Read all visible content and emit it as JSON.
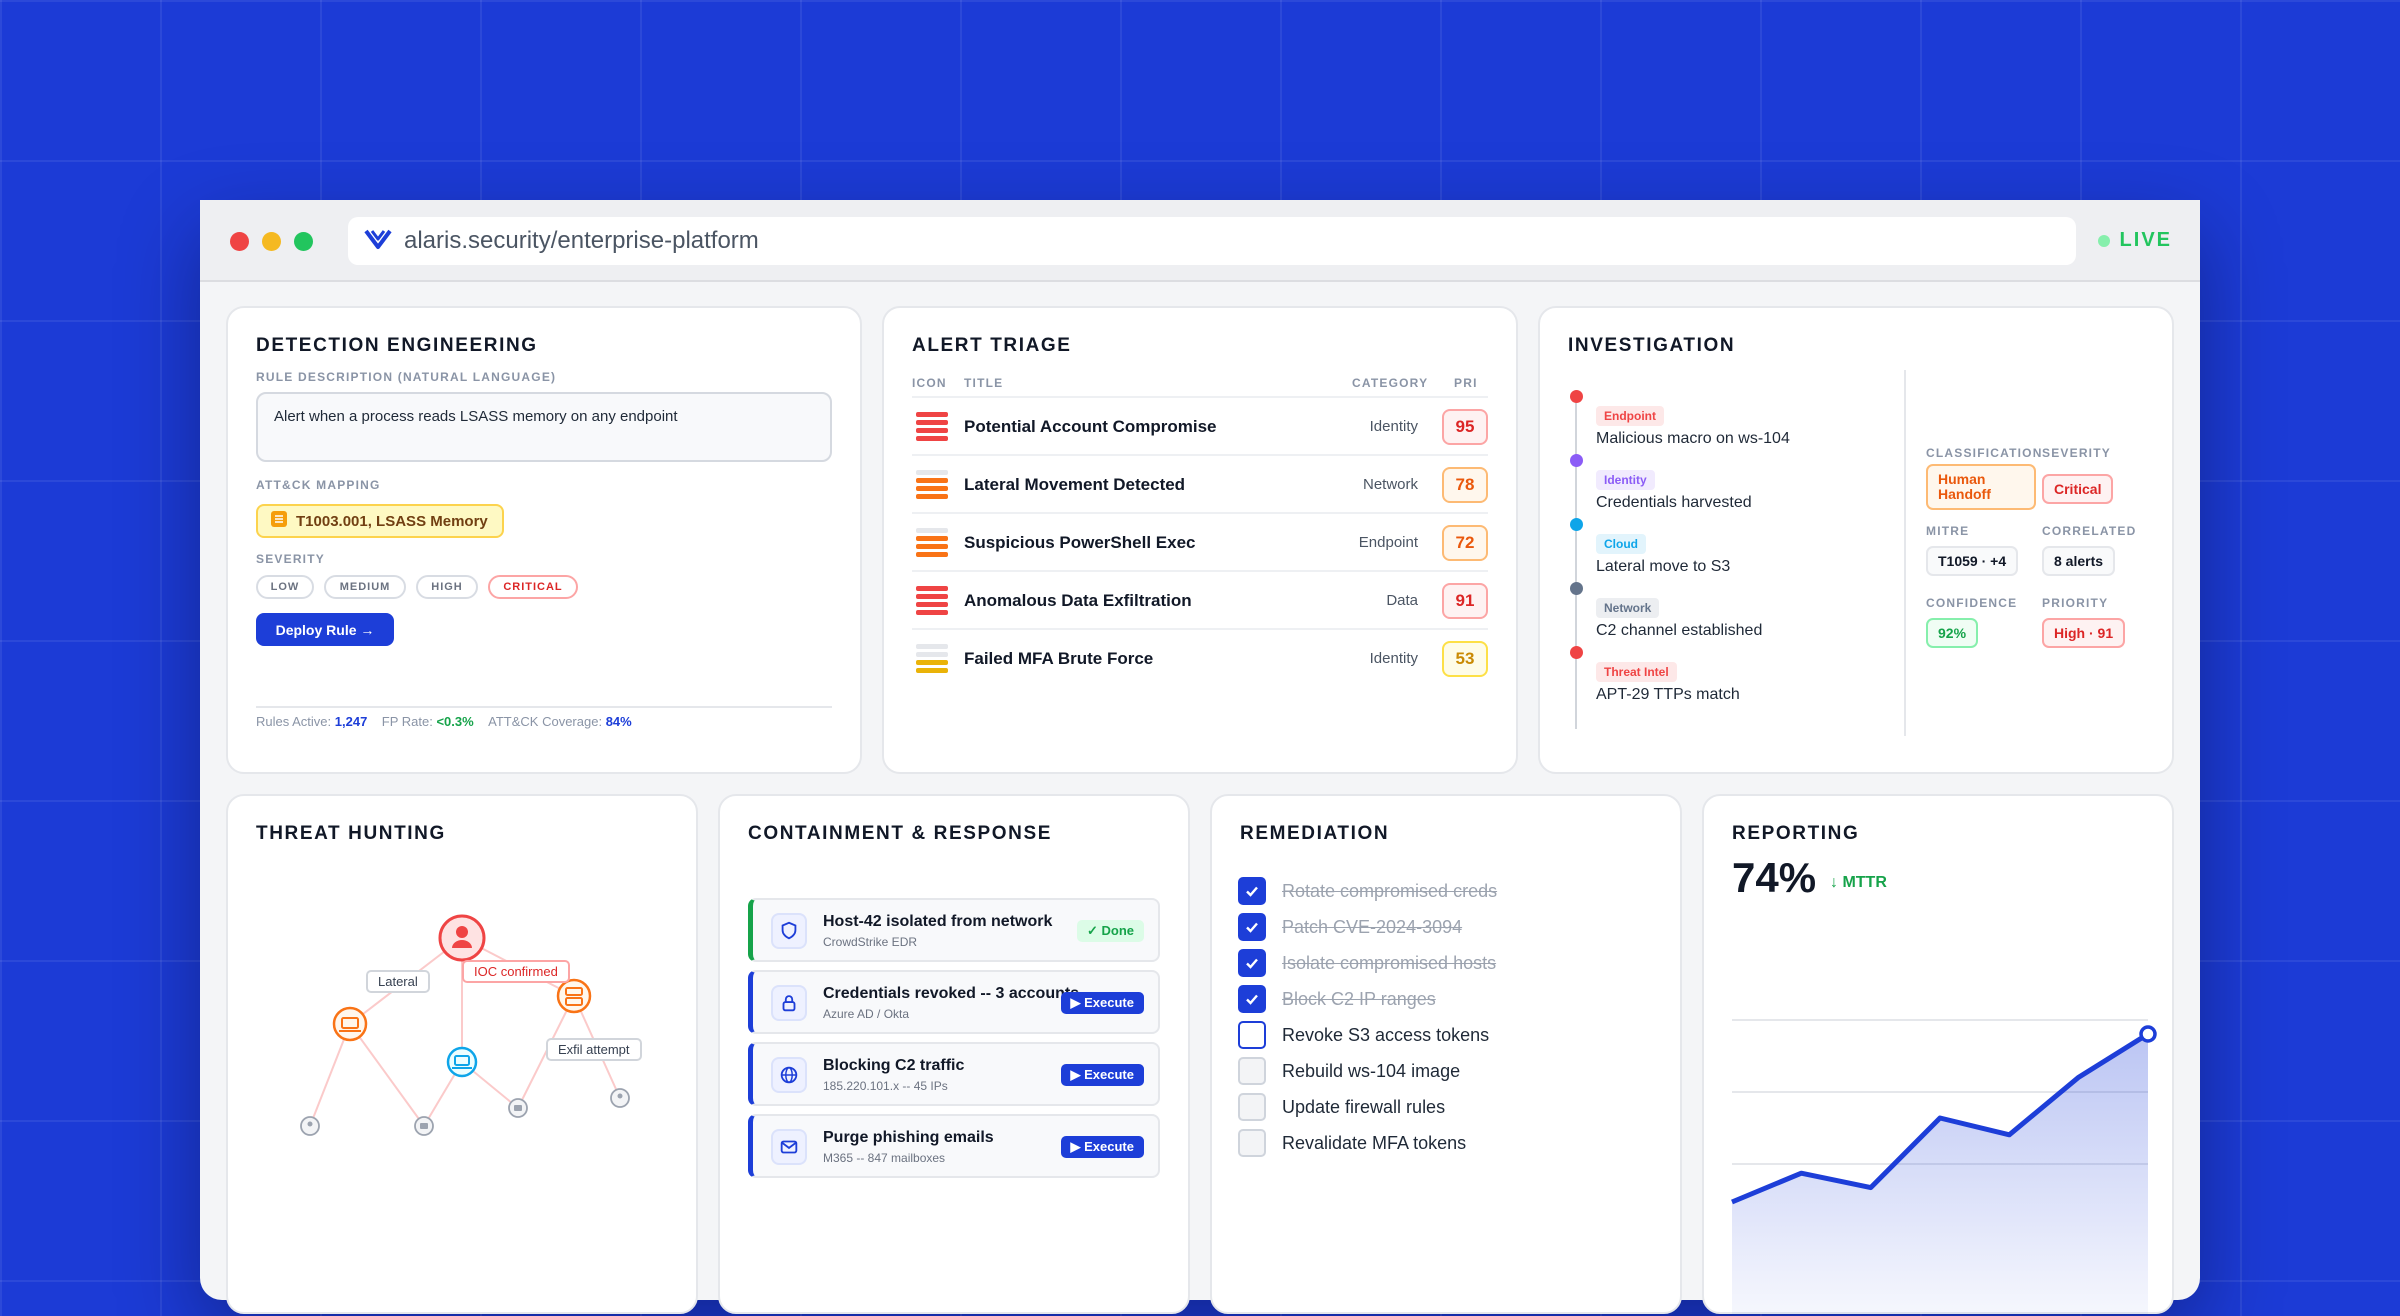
{
  "browser": {
    "url": "alaris.security/enterprise-platform",
    "live_label": "LIVE"
  },
  "detection": {
    "title": "DETECTION ENGINEERING",
    "rule_label": "RULE DESCRIPTION (NATURAL LANGUAGE)",
    "rule_text": "Alert when a process reads LSASS memory on any endpoint",
    "mapping_label": "ATT&CK MAPPING",
    "mapping_chip": "T1003.001, LSASS Memory",
    "severity_label": "SEVERITY",
    "severity_options": [
      "LOW",
      "MEDIUM",
      "HIGH",
      "CRITICAL"
    ],
    "severity_selected": "CRITICAL",
    "deploy_button": "Deploy Rule →",
    "stats": {
      "rules_label": "Rules Active:",
      "rules_value": "1,247",
      "fp_label": "FP Rate:",
      "fp_value": "<0.3%",
      "coverage_label": "ATT&CK Coverage:",
      "coverage_value": "84%"
    }
  },
  "triage": {
    "title": "ALERT TRIAGE",
    "columns": {
      "icon": "ICON",
      "title": "TITLE",
      "category": "CATEGORY",
      "pri": "PRI"
    },
    "rows": [
      {
        "title": "Potential Account Compromise",
        "category": "Identity",
        "pri": "95",
        "level": 5
      },
      {
        "title": "Lateral Movement Detected",
        "category": "Network",
        "pri": "78",
        "level": 4
      },
      {
        "title": "Suspicious PowerShell Exec",
        "category": "Endpoint",
        "pri": "72",
        "level": 4
      },
      {
        "title": "Anomalous Data Exfiltration",
        "category": "Data",
        "pri": "91",
        "level": 5
      },
      {
        "title": "Failed MFA Brute Force",
        "category": "Identity",
        "pri": "53",
        "level": 3
      }
    ],
    "colors": {
      "critical": "#ef4444",
      "high": "#f97316",
      "medium": "#eab308"
    }
  },
  "investigation": {
    "title": "INVESTIGATION",
    "timeline": [
      {
        "tag": "Endpoint",
        "text": "Malicious macro on ws-104",
        "color": "#ef4444"
      },
      {
        "tag": "Identity",
        "text": "Credentials harvested",
        "color": "#8b5cf6"
      },
      {
        "tag": "Cloud",
        "text": "Lateral move to S3",
        "color": "#0ea5e9"
      },
      {
        "tag": "Network",
        "text": "C2 channel established",
        "color": "#64748b"
      },
      {
        "tag": "Threat Intel",
        "text": "APT-29 TTPs match",
        "color": "#ef4444"
      }
    ],
    "fields": {
      "classification_label": "CLASSIFICATION",
      "classification_value": "Human Handoff",
      "severity_label": "SEVERITY",
      "severity_value": "Critical",
      "mitre_label": "MITRE",
      "mitre_value": "T1059 · +4",
      "correlated_label": "CORRELATED",
      "correlated_value": "8 alerts",
      "confidence_label": "CONFIDENCE",
      "confidence_value": "92%",
      "priority_label": "PRIORITY",
      "priority_value": "High · 91"
    }
  },
  "hunting": {
    "title": "THREAT HUNTING",
    "labels": {
      "lateral": "Lateral",
      "ioc": "IOC confirmed",
      "exfil": "Exfil attempt"
    }
  },
  "containment": {
    "title": "CONTAINMENT & RESPONSE",
    "items": [
      {
        "title": "Host-42 isolated from network",
        "sub": "CrowdStrike EDR",
        "action": "✓ Done",
        "icon": "shield-icon",
        "status": "done"
      },
      {
        "title": "Credentials revoked -- 3 accounts",
        "sub": "Azure AD / Okta",
        "action": "▶ Execute",
        "icon": "lock-icon",
        "status": "pending"
      },
      {
        "title": "Blocking C2 traffic",
        "sub": "185.220.101.x -- 45 IPs",
        "action": "▶ Execute",
        "icon": "globe-icon",
        "status": "pending"
      },
      {
        "title": "Purge phishing emails",
        "sub": "M365 -- 847 mailboxes",
        "action": "▶ Execute",
        "icon": "mail-icon",
        "status": "pending"
      }
    ]
  },
  "remediation": {
    "title": "REMEDIATION",
    "items": [
      {
        "label": "Rotate compromised creds",
        "done": true
      },
      {
        "label": "Patch CVE-2024-3094",
        "done": true
      },
      {
        "label": "Isolate compromised hosts",
        "done": true
      },
      {
        "label": "Block C2 IP ranges",
        "done": true
      },
      {
        "label": "Revoke S3 access tokens",
        "done": false
      },
      {
        "label": "Rebuild ws-104 image",
        "done": false
      },
      {
        "label": "Update firewall rules",
        "done": false
      },
      {
        "label": "Revalidate MFA tokens",
        "done": false
      }
    ]
  },
  "reporting": {
    "title": "REPORTING",
    "big_value": "74%",
    "delta": "↓ MTTR",
    "chart_data": {
      "type": "area",
      "x": [
        1,
        2,
        3,
        4,
        5,
        6,
        7
      ],
      "values": [
        10,
        22,
        16,
        45,
        38,
        62,
        80
      ],
      "ylim": [
        0,
        100
      ],
      "color": "#1d3ed8"
    }
  },
  "colors": {
    "accent": "#1d3ed8",
    "success": "#16a34a",
    "danger": "#dc2626"
  }
}
